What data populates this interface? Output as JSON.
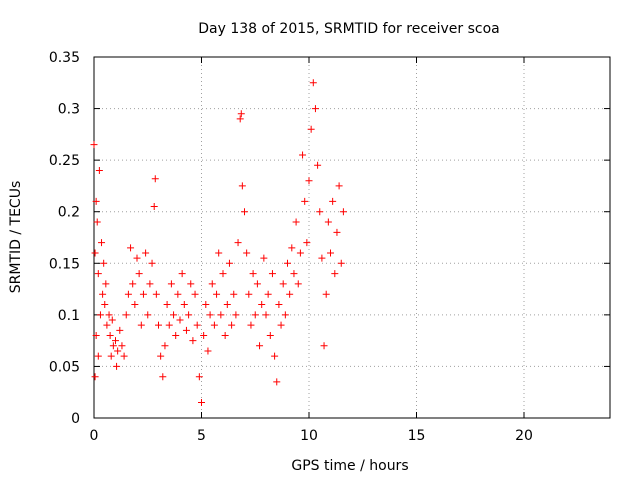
{
  "chart_data": {
    "type": "scatter",
    "title": "Day 138 of 2015, SRMTID for receiver scoa",
    "xlabel": "GPS time / hours",
    "ylabel": "SRMTID / TECUs",
    "xlim": [
      0,
      24
    ],
    "ylim": [
      0,
      0.35
    ],
    "x_ticks": [
      0,
      5,
      10,
      15,
      20
    ],
    "x_tick_labels": [
      "0",
      "5",
      "10",
      "15",
      "20"
    ],
    "y_ticks": [
      0,
      0.05,
      0.1,
      0.15,
      0.2,
      0.25,
      0.3,
      0.35
    ],
    "y_tick_labels": [
      "0",
      "0.05",
      "0.1",
      "0.15",
      "0.2",
      "0.25",
      "0.3",
      "0.35"
    ],
    "grid": true,
    "marker": "plus",
    "series_color": "#ff0000",
    "series": [
      {
        "name": "SRMTID",
        "x": [
          0.0,
          0.05,
          0.05,
          0.1,
          0.1,
          0.15,
          0.2,
          0.2,
          0.25,
          0.3,
          0.35,
          0.4,
          0.45,
          0.5,
          0.55,
          0.6,
          0.7,
          0.75,
          0.8,
          0.85,
          0.9,
          1.0,
          1.05,
          1.1,
          1.2,
          1.3,
          1.4,
          1.5,
          1.6,
          1.7,
          1.8,
          1.9,
          2.0,
          2.1,
          2.2,
          2.3,
          2.4,
          2.5,
          2.6,
          2.7,
          2.8,
          2.85,
          2.9,
          3.0,
          3.1,
          3.2,
          3.3,
          3.4,
          3.5,
          3.6,
          3.7,
          3.8,
          3.9,
          4.0,
          4.1,
          4.2,
          4.3,
          4.4,
          4.5,
          4.6,
          4.7,
          4.8,
          4.9,
          5.0,
          5.1,
          5.2,
          5.3,
          5.4,
          5.5,
          5.6,
          5.7,
          5.8,
          5.9,
          6.0,
          6.1,
          6.2,
          6.3,
          6.4,
          6.5,
          6.6,
          6.7,
          6.8,
          6.85,
          6.9,
          7.0,
          7.1,
          7.2,
          7.3,
          7.4,
          7.5,
          7.6,
          7.7,
          7.8,
          7.9,
          8.0,
          8.1,
          8.2,
          8.3,
          8.4,
          8.5,
          8.6,
          8.7,
          8.8,
          8.9,
          9.0,
          9.1,
          9.2,
          9.3,
          9.4,
          9.5,
          9.6,
          9.7,
          9.8,
          9.9,
          10.0,
          10.1,
          10.2,
          10.3,
          10.4,
          10.5,
          10.6,
          10.7,
          10.8,
          10.9,
          11.0,
          11.1,
          11.2,
          11.3,
          11.4,
          11.5,
          11.6
        ],
        "y": [
          0.265,
          0.16,
          0.04,
          0.21,
          0.08,
          0.19,
          0.14,
          0.06,
          0.24,
          0.1,
          0.17,
          0.12,
          0.15,
          0.11,
          0.13,
          0.09,
          0.1,
          0.08,
          0.06,
          0.095,
          0.07,
          0.075,
          0.05,
          0.065,
          0.085,
          0.07,
          0.06,
          0.1,
          0.12,
          0.165,
          0.13,
          0.11,
          0.155,
          0.14,
          0.09,
          0.12,
          0.16,
          0.1,
          0.13,
          0.15,
          0.205,
          0.232,
          0.12,
          0.09,
          0.06,
          0.04,
          0.07,
          0.11,
          0.09,
          0.13,
          0.1,
          0.08,
          0.12,
          0.095,
          0.14,
          0.11,
          0.085,
          0.1,
          0.13,
          0.075,
          0.12,
          0.09,
          0.04,
          0.015,
          0.08,
          0.11,
          0.065,
          0.1,
          0.13,
          0.09,
          0.12,
          0.16,
          0.1,
          0.14,
          0.08,
          0.11,
          0.15,
          0.09,
          0.12,
          0.1,
          0.17,
          0.29,
          0.295,
          0.225,
          0.2,
          0.16,
          0.12,
          0.09,
          0.14,
          0.1,
          0.13,
          0.07,
          0.11,
          0.155,
          0.1,
          0.12,
          0.08,
          0.14,
          0.06,
          0.035,
          0.11,
          0.09,
          0.13,
          0.1,
          0.15,
          0.12,
          0.165,
          0.14,
          0.19,
          0.13,
          0.16,
          0.255,
          0.21,
          0.17,
          0.23,
          0.28,
          0.325,
          0.3,
          0.245,
          0.2,
          0.155,
          0.07,
          0.12,
          0.19,
          0.16,
          0.21,
          0.14,
          0.18,
          0.225,
          0.15,
          0.2
        ]
      }
    ]
  }
}
